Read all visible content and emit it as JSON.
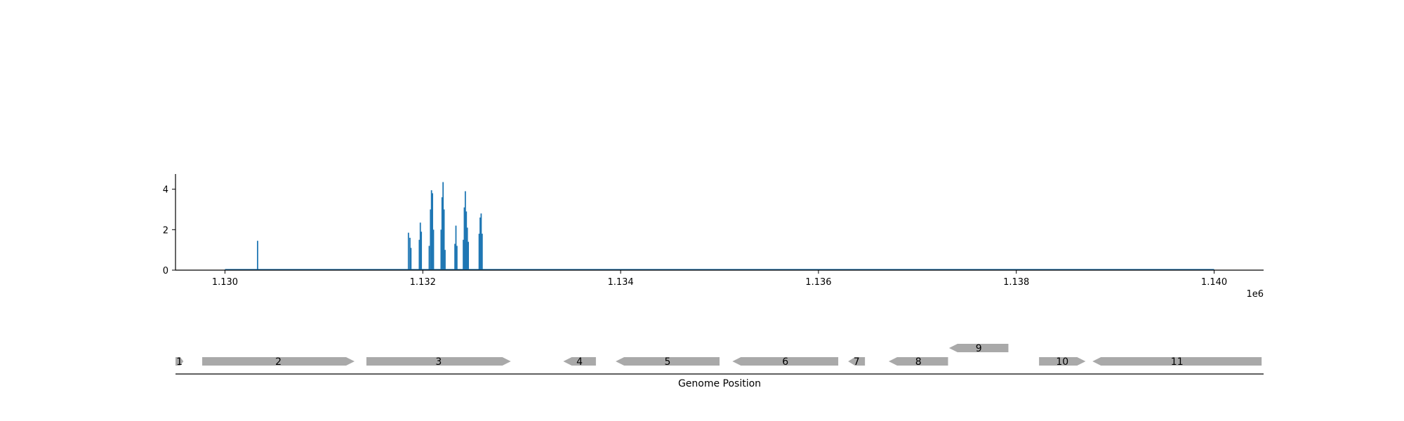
{
  "chart_data": [
    {
      "type": "line",
      "title": "",
      "xlabel": "",
      "ylabel": "",
      "xlim": [
        1129500,
        1140500
      ],
      "ylim": [
        0,
        4.75
      ],
      "x_ticks": [
        1130000,
        1132000,
        1134000,
        1136000,
        1138000,
        1140000
      ],
      "x_tick_labels": [
        "1.130",
        "1.132",
        "1.134",
        "1.136",
        "1.138",
        "1.140"
      ],
      "x_offset_label": "1e6",
      "y_ticks": [
        0,
        2,
        4
      ],
      "y_tick_labels": [
        "0",
        "2",
        "4"
      ],
      "grid": false,
      "series_color": "#1f77b4",
      "baseline": {
        "x_start": 1130000,
        "x_end": 1140000,
        "value": 0.02
      },
      "peaks": [
        {
          "x": 1130330,
          "y": 1.45
        },
        {
          "x": 1131855,
          "y": 1.85
        },
        {
          "x": 1131870,
          "y": 1.6
        },
        {
          "x": 1131880,
          "y": 1.1
        },
        {
          "x": 1131965,
          "y": 1.5
        },
        {
          "x": 1131975,
          "y": 2.35
        },
        {
          "x": 1131985,
          "y": 1.9
        },
        {
          "x": 1132065,
          "y": 1.2
        },
        {
          "x": 1132078,
          "y": 3.0
        },
        {
          "x": 1132088,
          "y": 3.95
        },
        {
          "x": 1132098,
          "y": 3.8
        },
        {
          "x": 1132108,
          "y": 2.0
        },
        {
          "x": 1132185,
          "y": 2.0
        },
        {
          "x": 1132195,
          "y": 3.6
        },
        {
          "x": 1132205,
          "y": 4.35
        },
        {
          "x": 1132215,
          "y": 3.0
        },
        {
          "x": 1132225,
          "y": 1.0
        },
        {
          "x": 1132325,
          "y": 1.3
        },
        {
          "x": 1132335,
          "y": 2.2
        },
        {
          "x": 1132345,
          "y": 1.2
        },
        {
          "x": 1132410,
          "y": 1.5
        },
        {
          "x": 1132420,
          "y": 3.1
        },
        {
          "x": 1132430,
          "y": 3.9
        },
        {
          "x": 1132440,
          "y": 2.9
        },
        {
          "x": 1132450,
          "y": 2.1
        },
        {
          "x": 1132460,
          "y": 1.4
        },
        {
          "x": 1132570,
          "y": 1.8
        },
        {
          "x": 1132580,
          "y": 2.6
        },
        {
          "x": 1132590,
          "y": 2.8
        },
        {
          "x": 1132600,
          "y": 1.8
        }
      ]
    },
    {
      "type": "gene-track",
      "xlabel": "Genome Position",
      "xlim": [
        1129500,
        1140500
      ],
      "feature_color": "#a9a9a9",
      "genes": [
        {
          "label": "1",
          "start": 1129500,
          "end": 1129580,
          "strand": "+",
          "row": 0
        },
        {
          "label": "2",
          "start": 1129770,
          "end": 1131310,
          "strand": "+",
          "row": 0
        },
        {
          "label": "3",
          "start": 1131430,
          "end": 1132890,
          "strand": "+",
          "row": 0
        },
        {
          "label": "4",
          "start": 1133420,
          "end": 1133750,
          "strand": "-",
          "row": 0
        },
        {
          "label": "5",
          "start": 1133950,
          "end": 1135000,
          "strand": "-",
          "row": 0
        },
        {
          "label": "6",
          "start": 1135130,
          "end": 1136200,
          "strand": "-",
          "row": 0
        },
        {
          "label": "7",
          "start": 1136300,
          "end": 1136470,
          "strand": "-",
          "row": 0
        },
        {
          "label": "8",
          "start": 1136710,
          "end": 1137310,
          "strand": "-",
          "row": 0
        },
        {
          "label": "9",
          "start": 1137320,
          "end": 1137920,
          "strand": "-",
          "row": 1
        },
        {
          "label": "10",
          "start": 1138230,
          "end": 1138700,
          "strand": "+",
          "row": 0
        },
        {
          "label": "11",
          "start": 1138770,
          "end": 1140480,
          "strand": "-",
          "row": 0
        }
      ]
    }
  ]
}
